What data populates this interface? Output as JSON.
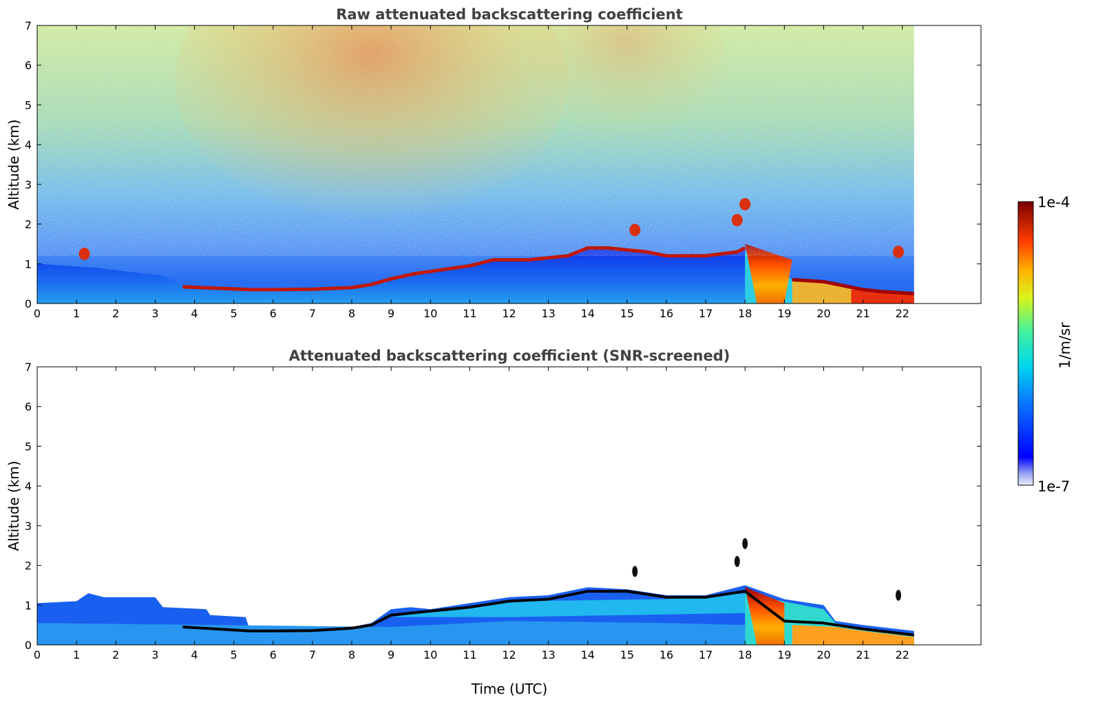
{
  "chart_data": [
    {
      "type": "heatmap",
      "title": "Raw attenuated backscattering coefficient",
      "ylabel": "Altitude (km)",
      "xlabel": "",
      "xlim": [
        0,
        24
      ],
      "ylim": [
        0,
        7
      ],
      "xticks": [
        0,
        1,
        2,
        3,
        4,
        5,
        6,
        7,
        8,
        9,
        10,
        11,
        12,
        13,
        14,
        15,
        16,
        17,
        18,
        19,
        20,
        21,
        22
      ],
      "yticks": [
        0,
        1,
        2,
        3,
        4,
        5,
        6,
        7
      ],
      "data_end_time": 22.3,
      "colorscale": "jet-log",
      "layers": {
        "noisy_background": "clear-air signal with strong noise, orange-red speckle aloft between 5 and 11 UTC",
        "boundary_layer_top": [
          [
            3.7,
            0.42
          ],
          [
            5.4,
            0.35
          ],
          [
            6.0,
            0.35
          ],
          [
            7.0,
            0.36
          ],
          [
            8.0,
            0.4
          ],
          [
            8.5,
            0.48
          ],
          [
            9.0,
            0.62
          ],
          [
            9.6,
            0.75
          ],
          [
            10.3,
            0.85
          ],
          [
            11.0,
            0.95
          ],
          [
            11.6,
            1.1
          ],
          [
            12.5,
            1.1
          ],
          [
            13.0,
            1.15
          ],
          [
            13.5,
            1.2
          ],
          [
            14.0,
            1.4
          ],
          [
            14.5,
            1.4
          ],
          [
            15.0,
            1.35
          ],
          [
            15.5,
            1.3
          ],
          [
            16.0,
            1.2
          ],
          [
            17.0,
            1.2
          ],
          [
            17.8,
            1.3
          ],
          [
            18.0,
            1.4
          ]
        ],
        "elevated_cloud_bits": [
          [
            1.2,
            1.25
          ],
          [
            15.2,
            1.85
          ],
          [
            17.8,
            2.1
          ],
          [
            18.0,
            2.5
          ],
          [
            21.9,
            1.3
          ]
        ],
        "precip_shaft": [
          18.3,
          19.0
        ],
        "low_cloud_tail": [
          [
            19.2,
            0.6
          ],
          [
            20.0,
            0.55
          ],
          [
            20.5,
            0.45
          ],
          [
            21.0,
            0.35
          ],
          [
            21.5,
            0.3
          ],
          [
            22.3,
            0.25
          ]
        ]
      }
    },
    {
      "type": "heatmap",
      "title": "Attenuated backscattering coefficient (SNR-screened)",
      "ylabel": "Altitude (km)",
      "xlabel": "Time (UTC)",
      "xlim": [
        0,
        24
      ],
      "ylim": [
        0,
        7
      ],
      "xticks": [
        0,
        1,
        2,
        3,
        4,
        5,
        6,
        7,
        8,
        9,
        10,
        11,
        12,
        13,
        14,
        15,
        16,
        17,
        18,
        19,
        20,
        21,
        22
      ],
      "yticks": [
        0,
        1,
        2,
        3,
        4,
        5,
        6,
        7
      ],
      "data_end_time": 22.3,
      "colorscale": "jet-log",
      "layers": {
        "boundary_layer_top": [
          [
            0,
            1.05
          ],
          [
            1.0,
            1.1
          ],
          [
            1.3,
            1.3
          ],
          [
            1.7,
            1.2
          ],
          [
            2.2,
            1.2
          ],
          [
            3.0,
            1.2
          ],
          [
            3.2,
            0.95
          ],
          [
            4.3,
            0.9
          ],
          [
            4.4,
            0.75
          ],
          [
            5.3,
            0.7
          ],
          [
            5.4,
            0.4
          ],
          [
            8.0,
            0.45
          ],
          [
            8.5,
            0.55
          ],
          [
            9.0,
            0.9
          ],
          [
            9.5,
            0.95
          ],
          [
            10.0,
            0.9
          ],
          [
            11.0,
            1.05
          ],
          [
            12.0,
            1.2
          ],
          [
            13.0,
            1.25
          ],
          [
            14.0,
            1.45
          ],
          [
            15.0,
            1.4
          ],
          [
            16.0,
            1.25
          ],
          [
            17.0,
            1.25
          ],
          [
            18.0,
            1.5
          ],
          [
            19.0,
            1.15
          ],
          [
            20.0,
            1.0
          ],
          [
            20.3,
            0.6
          ],
          [
            21.0,
            0.5
          ],
          [
            22.3,
            0.35
          ]
        ],
        "cloud_base_line": [
          [
            3.7,
            0.45
          ],
          [
            5.4,
            0.35
          ],
          [
            6.0,
            0.35
          ],
          [
            7.0,
            0.36
          ],
          [
            8.0,
            0.42
          ],
          [
            8.5,
            0.5
          ],
          [
            9.0,
            0.75
          ],
          [
            10.0,
            0.85
          ],
          [
            11.0,
            0.95
          ],
          [
            12.0,
            1.1
          ],
          [
            13.0,
            1.15
          ],
          [
            14.0,
            1.35
          ],
          [
            15.0,
            1.35
          ],
          [
            16.0,
            1.2
          ],
          [
            17.0,
            1.2
          ],
          [
            18.0,
            1.35
          ],
          [
            19.0,
            0.6
          ],
          [
            20.0,
            0.55
          ],
          [
            21.0,
            0.4
          ],
          [
            22.3,
            0.25
          ]
        ],
        "precip_shaft": [
          18.3,
          19.0
        ]
      }
    }
  ],
  "colorbar": {
    "label": "1/m/sr",
    "max_label": "1e-4",
    "min_label": "1e-7"
  },
  "colors": {
    "axis": "#000000",
    "title": "#404040",
    "background": "#ffffff"
  }
}
